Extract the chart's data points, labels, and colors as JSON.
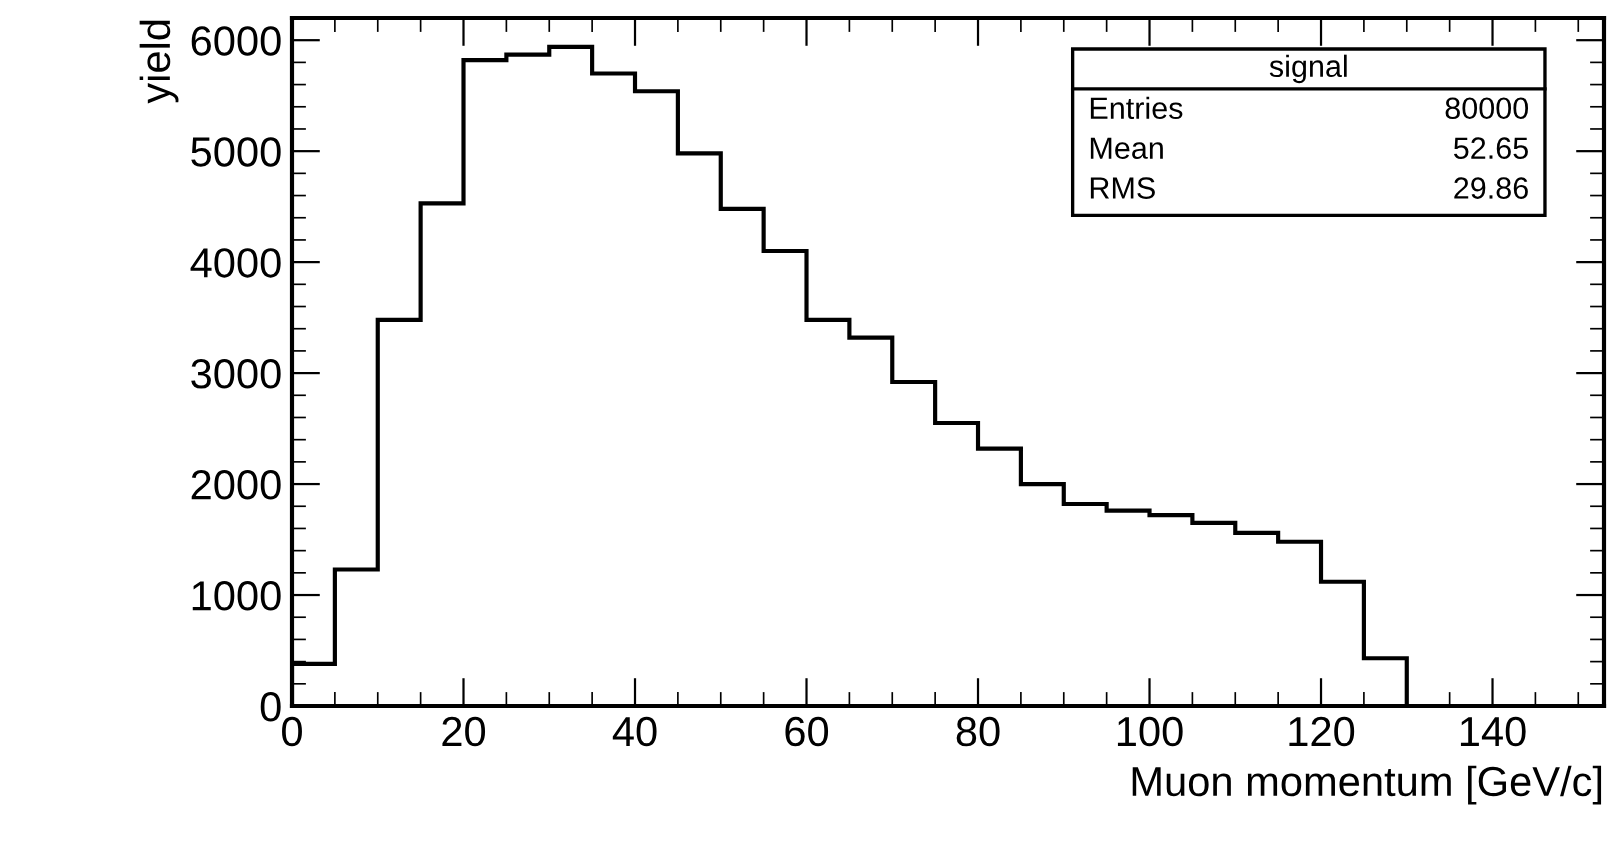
{
  "chart_data": {
    "type": "histogram",
    "xlabel": "Muon momentum [GeV/c]",
    "ylabel": "yield",
    "bins": [
      0,
      5,
      10,
      15,
      20,
      25,
      30,
      35,
      40,
      45,
      50,
      55,
      60,
      65,
      70,
      75,
      80,
      85,
      90,
      95,
      100,
      105,
      110,
      115,
      120,
      125,
      130,
      135,
      140,
      145,
      150
    ],
    "values": [
      380,
      1230,
      3480,
      4530,
      5820,
      5870,
      5940,
      5700,
      5540,
      4980,
      4480,
      4100,
      3480,
      3320,
      2920,
      2550,
      2320,
      2000,
      1820,
      1760,
      1720,
      1650,
      1560,
      1480,
      1120,
      430,
      0,
      0,
      0,
      0
    ],
    "color": "#000000",
    "xlim": [
      0,
      153
    ],
    "xticks": [
      0,
      20,
      40,
      60,
      80,
      100,
      120,
      140
    ],
    "ylim": [
      0,
      6200
    ],
    "yticks": [
      0,
      1000,
      2000,
      3000,
      4000,
      5000,
      6000
    ],
    "grid": false,
    "legend": false,
    "annotations": [
      "signal",
      "Entries",
      "80000",
      "Mean",
      "52.65",
      "RMS",
      "29.86"
    ]
  }
}
